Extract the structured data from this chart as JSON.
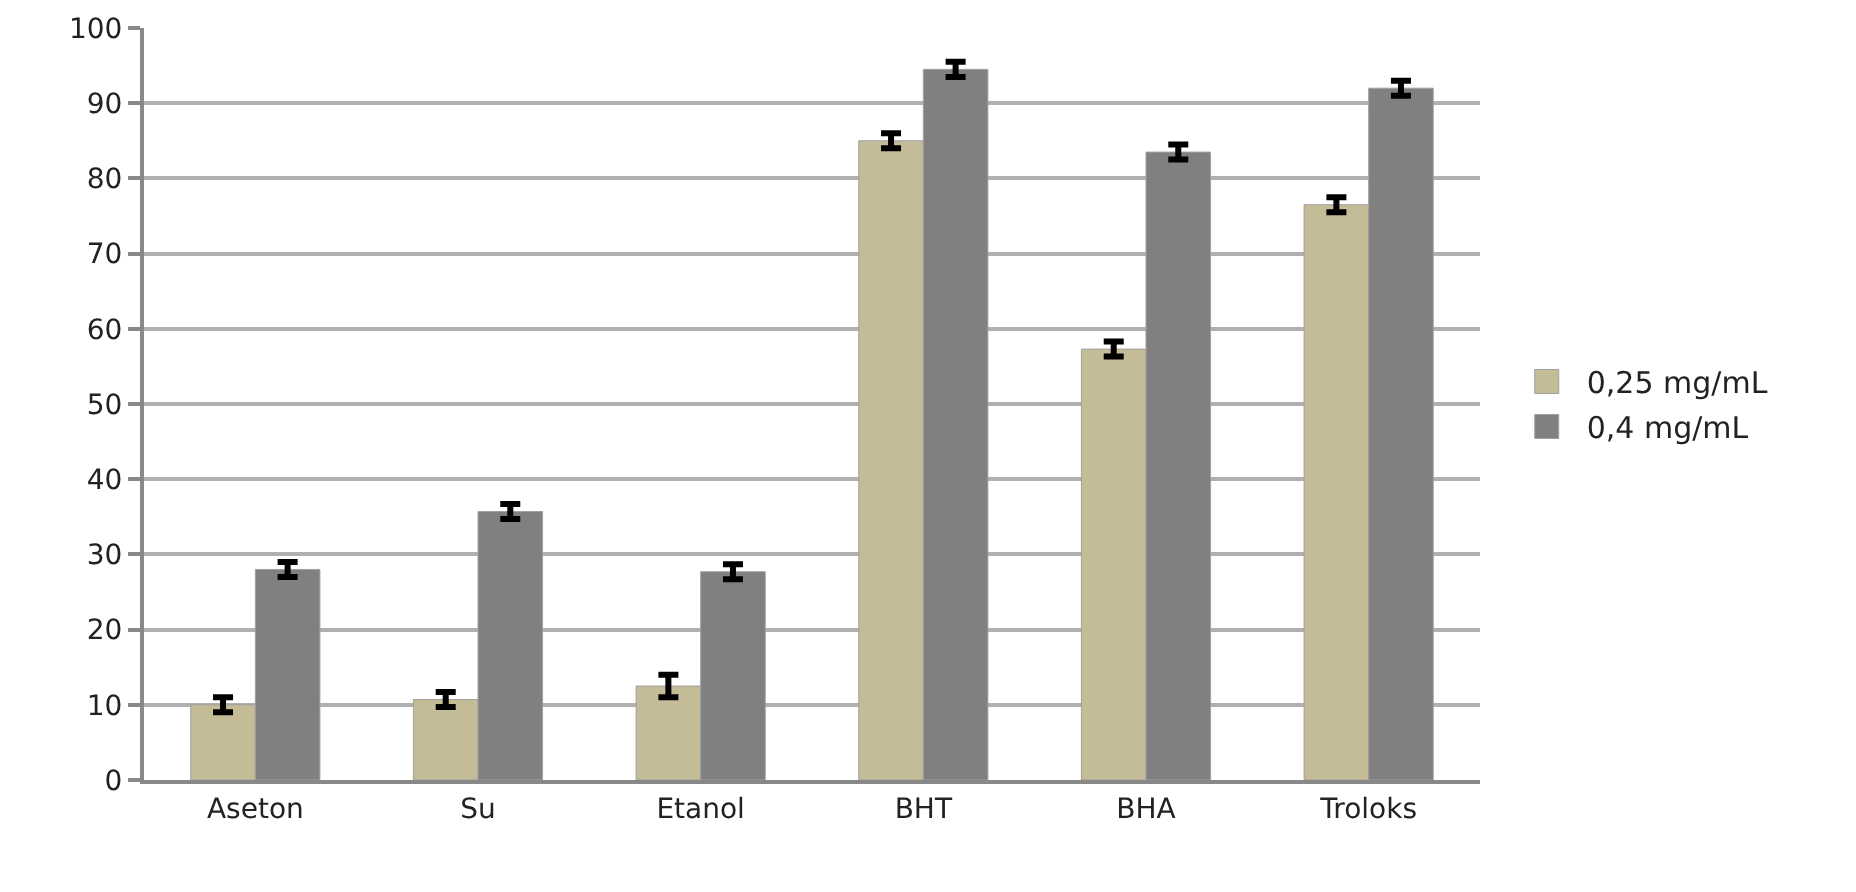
{
  "chart_data": {
    "type": "bar",
    "categories": [
      "Aseton",
      "Su",
      "Etanol",
      "BHT",
      "BHA",
      "Troloks"
    ],
    "series": [
      {
        "name": "0,25 mg/mL",
        "color": "#c4bc96",
        "values": [
          10,
          10.7,
          12.5,
          85,
          57.3,
          76.5
        ],
        "errors": [
          1,
          1,
          1.5,
          1,
          1,
          1
        ]
      },
      {
        "name": "0,4 mg/mL",
        "color": "#808080",
        "values": [
          28,
          35.7,
          27.7,
          94.5,
          83.5,
          92
        ],
        "errors": [
          1,
          1,
          1,
          1,
          1,
          1
        ]
      }
    ],
    "ylim": [
      0,
      100
    ],
    "yticks": [
      0,
      10,
      20,
      30,
      40,
      50,
      60,
      70,
      80,
      90,
      100
    ],
    "grid": "y",
    "legend": "right"
  }
}
